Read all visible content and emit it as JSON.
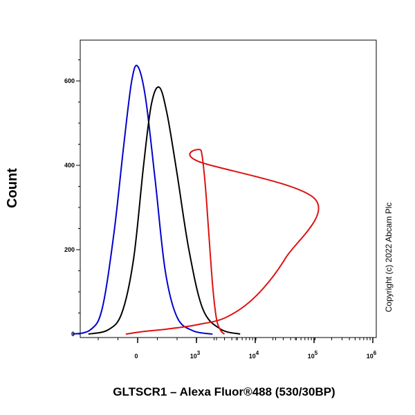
{
  "chart_data": {
    "type": "line",
    "title": "",
    "xlabel": "GLTSCR1 – Alexa Fluor®488 (530/30BP)",
    "ylabel": "Count",
    "x_scale": "log (biexponential)",
    "xlim": [
      -1000,
      1000000
    ],
    "ylim": [
      0,
      700
    ],
    "y_ticks": [
      {
        "value": 0,
        "label": "0"
      },
      {
        "value": 200,
        "label": "200"
      },
      {
        "value": 400,
        "label": "400"
      },
      {
        "value": 600,
        "label": "600"
      }
    ],
    "x_ticks": [
      {
        "value": 0,
        "label": "0",
        "sup": ""
      },
      {
        "value": 1000,
        "label": "10",
        "sup": "3"
      },
      {
        "value": 10000,
        "label": "10",
        "sup": "4"
      },
      {
        "value": 100000,
        "label": "10",
        "sup": "5"
      },
      {
        "value": 1000000,
        "label": "10",
        "sup": "6"
      }
    ],
    "grid": false,
    "legend": "none",
    "annotation": "Copyright (c) 2022 Abcam Plc",
    "series": [
      {
        "color": "#0000cc",
        "x": [
          -330,
          -240,
          -180,
          -120,
          -70,
          -30,
          0,
          40,
          90,
          140,
          200,
          280,
          380
        ],
        "y": [
          0,
          10,
          60,
          240,
          450,
          600,
          635,
          560,
          360,
          150,
          40,
          8,
          0
        ]
      },
      {
        "color": "#000000",
        "x": [
          -250,
          -150,
          -80,
          -20,
          30,
          70,
          110,
          150,
          200,
          260,
          330,
          420,
          520
        ],
        "y": [
          0,
          10,
          50,
          180,
          400,
          545,
          585,
          520,
          380,
          200,
          60,
          12,
          0
        ]
      },
      {
        "color": "#dd1111",
        "x": [
          -60,
          30,
          150,
          300,
          450,
          600,
          750,
          900,
          1050,
          1200,
          1400,
          1600,
          1900,
          2200,
          2600,
          3000
        ],
        "y": [
          0,
          6,
          12,
          22,
          40,
          90,
          180,
          320,
          410,
          435,
          360,
          250,
          110,
          35,
          8,
          0
        ]
      }
    ]
  }
}
